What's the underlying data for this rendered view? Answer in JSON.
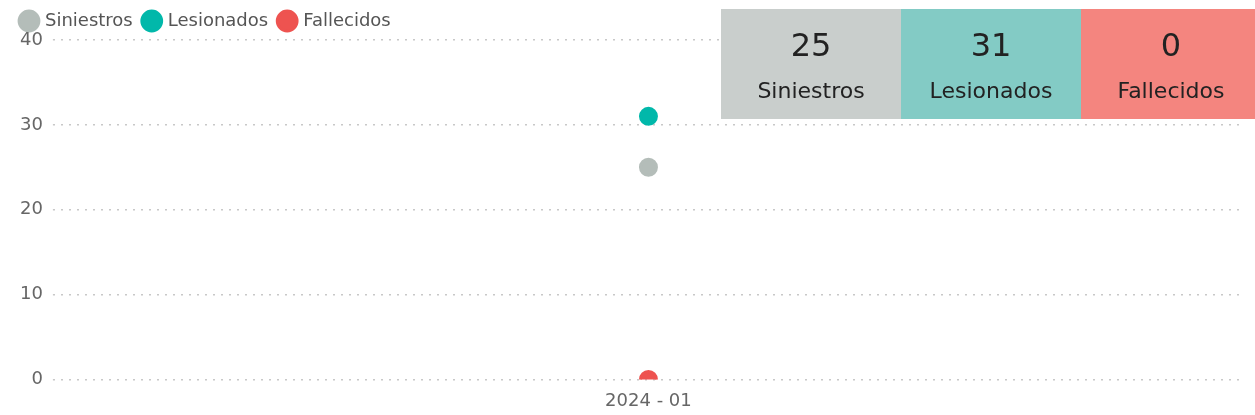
{
  "chart_data": [
    {
      "type": "line",
      "categories": [
        "2024 - 01"
      ],
      "series": [
        {
          "name": "Siniestros",
          "color": "#b4bdb9",
          "values": [
            25
          ]
        },
        {
          "name": "Lesionados",
          "color": "#01b8aa",
          "values": [
            31
          ]
        },
        {
          "name": "Fallecidos",
          "color": "#ee5350",
          "values": [
            0
          ]
        }
      ],
      "ylim": [
        0,
        40
      ],
      "yticks": [
        0,
        10,
        20,
        30,
        40
      ],
      "grid": "y",
      "legend": "top left",
      "marker": "circle"
    },
    {
      "type": "other",
      "categories": [
        "Siniestros",
        "Lesionados",
        "Fallecidos"
      ],
      "values": [
        25,
        31,
        0
      ],
      "colors": [
        "#c9cecc",
        "#83cbc5",
        "#f4857f"
      ],
      "data_labels": true
    }
  ]
}
